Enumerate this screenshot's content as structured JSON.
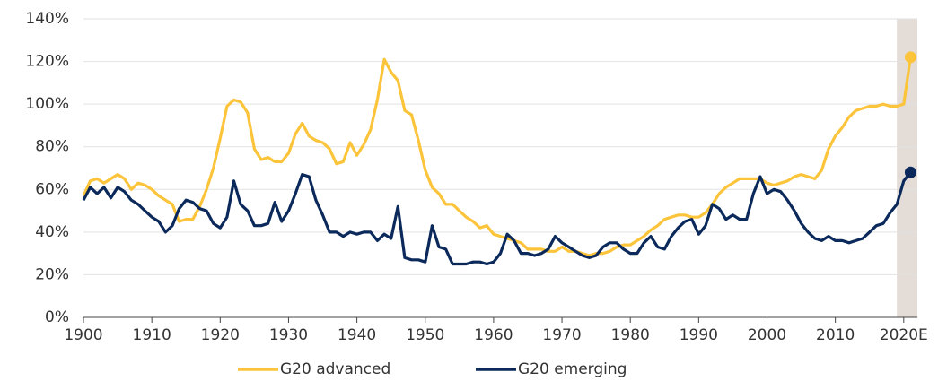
{
  "chart_data": {
    "type": "line",
    "x": [
      1900,
      1901,
      1902,
      1903,
      1904,
      1905,
      1906,
      1907,
      1908,
      1909,
      1910,
      1911,
      1912,
      1913,
      1914,
      1915,
      1916,
      1917,
      1918,
      1919,
      1920,
      1921,
      1922,
      1923,
      1924,
      1925,
      1926,
      1927,
      1928,
      1929,
      1930,
      1931,
      1932,
      1933,
      1934,
      1935,
      1936,
      1937,
      1938,
      1939,
      1940,
      1941,
      1942,
      1943,
      1944,
      1945,
      1946,
      1947,
      1948,
      1949,
      1950,
      1951,
      1952,
      1953,
      1954,
      1955,
      1956,
      1957,
      1958,
      1959,
      1960,
      1961,
      1962,
      1963,
      1964,
      1965,
      1966,
      1967,
      1968,
      1969,
      1970,
      1971,
      1972,
      1973,
      1974,
      1975,
      1976,
      1977,
      1978,
      1979,
      1980,
      1981,
      1982,
      1983,
      1984,
      1985,
      1986,
      1987,
      1988,
      1989,
      1990,
      1991,
      1992,
      1993,
      1994,
      1995,
      1996,
      1997,
      1998,
      1999,
      2000,
      2001,
      2002,
      2003,
      2004,
      2005,
      2006,
      2007,
      2008,
      2009,
      2010,
      2011,
      2012,
      2013,
      2014,
      2015,
      2016,
      2017,
      2018,
      2019,
      2020,
      2021
    ],
    "series": [
      {
        "name": "G20 advanced",
        "color": "#fcc43a",
        "values": [
          57,
          64,
          65,
          63,
          65,
          67,
          65,
          60,
          63,
          62,
          60,
          57,
          55,
          53,
          45,
          46,
          46,
          52,
          60,
          70,
          84,
          99,
          102,
          101,
          96,
          79,
          74,
          75,
          73,
          73,
          77,
          86,
          91,
          85,
          83,
          82,
          79,
          72,
          73,
          82,
          76,
          81,
          88,
          102,
          121,
          115,
          111,
          97,
          95,
          83,
          69,
          61,
          58,
          53,
          53,
          50,
          47,
          45,
          42,
          43,
          39,
          38,
          37,
          36,
          35,
          32,
          32,
          32,
          31,
          31,
          33,
          31,
          31,
          30,
          29,
          30,
          30,
          31,
          33,
          34,
          34,
          36,
          38,
          41,
          43,
          46,
          47,
          48,
          48,
          47,
          47,
          49,
          53,
          58,
          61,
          63,
          65,
          65,
          65,
          65,
          63,
          62,
          63,
          64,
          66,
          67,
          66,
          65,
          69,
          79,
          85,
          89,
          94,
          97,
          98,
          99,
          99,
          100,
          99,
          99,
          100,
          122
        ]
      },
      {
        "name": "G20 emerging",
        "color": "#0b2a5b",
        "values": [
          55,
          61,
          58,
          61,
          56,
          61,
          59,
          55,
          53,
          50,
          47,
          45,
          40,
          43,
          51,
          55,
          54,
          51,
          50,
          44,
          42,
          47,
          64,
          53,
          50,
          43,
          43,
          44,
          54,
          45,
          50,
          58,
          67,
          66,
          55,
          48,
          40,
          40,
          38,
          40,
          39,
          40,
          40,
          36,
          39,
          37,
          52,
          28,
          27,
          27,
          26,
          43,
          33,
          32,
          25,
          25,
          25,
          26,
          26,
          25,
          26,
          30,
          39,
          36,
          30,
          30,
          29,
          30,
          32,
          38,
          35,
          33,
          31,
          29,
          28,
          29,
          33,
          35,
          35,
          32,
          30,
          30,
          35,
          38,
          33,
          32,
          38,
          42,
          45,
          46,
          39,
          43,
          53,
          51,
          46,
          48,
          46,
          46,
          58,
          66,
          58,
          60,
          59,
          55,
          50,
          44,
          40,
          37,
          36,
          38,
          36,
          36,
          35,
          36,
          37,
          40,
          43,
          44,
          49,
          53,
          64,
          68
        ]
      }
    ],
    "xlim": [
      1900,
      2022
    ],
    "xticks": [
      1900,
      1910,
      1920,
      1930,
      1940,
      1950,
      1960,
      1970,
      1980,
      1990,
      2000,
      2010,
      {
        "value": 2020,
        "label": "2020E"
      }
    ],
    "ylim": [
      0,
      140
    ],
    "yticks": [
      {
        "value": 0,
        "label": "0%"
      },
      {
        "value": 20,
        "label": "20%"
      },
      {
        "value": 40,
        "label": "40%"
      },
      {
        "value": 60,
        "label": "60%"
      },
      {
        "value": 80,
        "label": "80%"
      },
      {
        "value": 100,
        "label": "100%"
      },
      {
        "value": 120,
        "label": "120%"
      },
      {
        "value": 140,
        "label": "140%"
      }
    ],
    "grid": true,
    "shaded_region": {
      "x": [
        2019,
        2022
      ],
      "color": "#e3dcd7"
    },
    "legend": "bottom"
  }
}
